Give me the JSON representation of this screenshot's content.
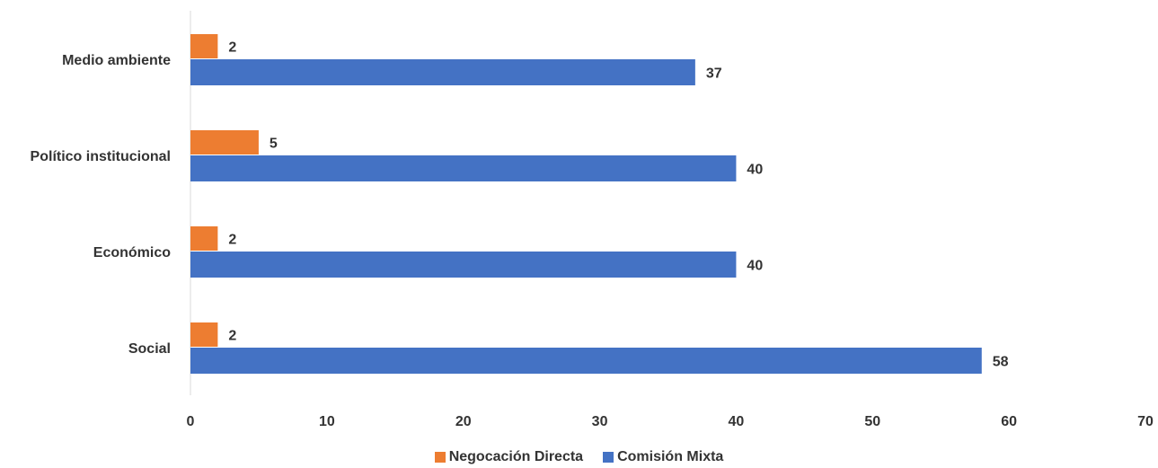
{
  "chart_data": {
    "type": "bar",
    "orientation": "horizontal",
    "categories": [
      "Medio ambiente",
      "Político institucional",
      "Económico",
      "Social"
    ],
    "series": [
      {
        "name": "Negocación Directa",
        "color": "#ED7D31",
        "values": [
          2,
          5,
          2,
          2
        ]
      },
      {
        "name": "Comisión Mixta",
        "color": "#4472C4",
        "values": [
          37,
          40,
          40,
          58
        ]
      }
    ],
    "xlim": [
      0,
      70
    ],
    "xticks": [
      "0",
      "10",
      "20",
      "30",
      "40",
      "50",
      "60",
      "70"
    ],
    "grid": false,
    "legend_position": "bottom",
    "data_labels": true
  }
}
